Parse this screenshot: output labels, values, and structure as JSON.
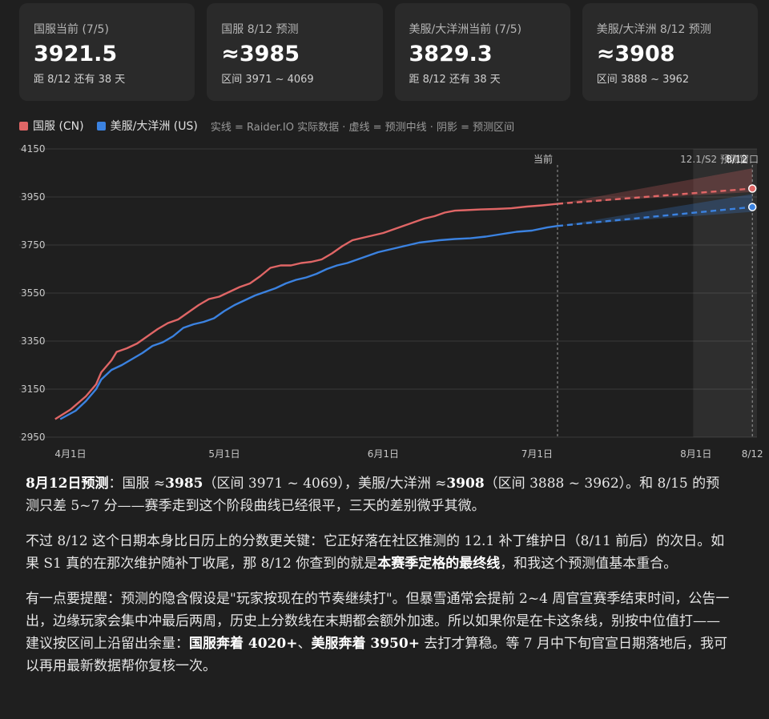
{
  "cards": [
    {
      "label": "国服当前 (7/5)",
      "value": "3921.5",
      "sub": "距 8/12 还有 38 天"
    },
    {
      "label": "国服 8/12 预测",
      "value": "≈3985",
      "sub": "区间 3971 ~ 4069"
    },
    {
      "label": "美服/大洋洲当前 (7/5)",
      "value": "3829.3",
      "sub": "距 8/12 还有 38 天"
    },
    {
      "label": "美服/大洋洲 8/12 预测",
      "value": "≈3908",
      "sub": "区间 3888 ~ 3962"
    }
  ],
  "legend": {
    "cn": "国服 (CN)",
    "us": "美服/大洋洲 (US)",
    "note": "实线 = Raider.IO 实际数据 · 虚线 = 预测中线 · 阴影 = 预测区间"
  },
  "colors": {
    "cn": "#e06666",
    "us": "#3b82e0",
    "background": "#1f1f1f"
  },
  "chart_data": {
    "type": "line",
    "x_unit": "days since 4/1",
    "xlim": [
      -10,
      140
    ],
    "ylim": [
      2950,
      4150
    ],
    "y_ticks": [
      2950,
      3150,
      3350,
      3550,
      3750,
      3950,
      4150
    ],
    "x_ticks": [
      {
        "x": 0,
        "label": "4月1日"
      },
      {
        "x": 30,
        "label": "5月1日"
      },
      {
        "x": 61,
        "label": "6月1日"
      },
      {
        "x": 91,
        "label": "7月1日"
      },
      {
        "x": 122,
        "label": "8月1日"
      },
      {
        "x": 133,
        "label": "8/12"
      }
    ],
    "markers": [
      {
        "x": 95,
        "label": "当前"
      },
      {
        "x": 133,
        "label": "8/12"
      }
    ],
    "window": {
      "x_start": 121,
      "x_end": 144,
      "label": "12.1/S2 预测窗口"
    },
    "series": [
      {
        "name": "国服 (CN)",
        "key": "cn",
        "actual": [
          [
            -3,
            3025
          ],
          [
            0,
            3065
          ],
          [
            3,
            3120
          ],
          [
            5,
            3170
          ],
          [
            6,
            3220
          ],
          [
            8,
            3270
          ],
          [
            9,
            3305
          ],
          [
            11,
            3320
          ],
          [
            13,
            3340
          ],
          [
            15,
            3370
          ],
          [
            17,
            3400
          ],
          [
            19,
            3425
          ],
          [
            21,
            3440
          ],
          [
            23,
            3470
          ],
          [
            25,
            3500
          ],
          [
            27,
            3525
          ],
          [
            29,
            3535
          ],
          [
            31,
            3555
          ],
          [
            33,
            3575
          ],
          [
            35,
            3590
          ],
          [
            37,
            3620
          ],
          [
            39,
            3655
          ],
          [
            41,
            3665
          ],
          [
            43,
            3665
          ],
          [
            45,
            3675
          ],
          [
            47,
            3680
          ],
          [
            49,
            3690
          ],
          [
            51,
            3715
          ],
          [
            53,
            3745
          ],
          [
            55,
            3770
          ],
          [
            57,
            3780
          ],
          [
            59,
            3790
          ],
          [
            61,
            3800
          ],
          [
            63,
            3815
          ],
          [
            65,
            3830
          ],
          [
            67,
            3845
          ],
          [
            69,
            3860
          ],
          [
            71,
            3870
          ],
          [
            73,
            3885
          ],
          [
            75,
            3893
          ],
          [
            77,
            3895
          ],
          [
            80,
            3898
          ],
          [
            83,
            3900
          ],
          [
            86,
            3903
          ],
          [
            89,
            3910
          ],
          [
            92,
            3915
          ],
          [
            95,
            3921.5
          ]
        ],
        "forecast": [
          [
            95,
            3921.5
          ],
          [
            133,
            3985
          ]
        ],
        "band_low": [
          [
            95,
            3921.5
          ],
          [
            133,
            3971
          ]
        ],
        "band_high": [
          [
            95,
            3921.5
          ],
          [
            133,
            4069
          ]
        ]
      },
      {
        "name": "美服/大洋洲 (US)",
        "key": "us",
        "actual": [
          [
            -2,
            3025
          ],
          [
            1,
            3060
          ],
          [
            3,
            3100
          ],
          [
            5,
            3150
          ],
          [
            6,
            3190
          ],
          [
            8,
            3230
          ],
          [
            10,
            3250
          ],
          [
            12,
            3275
          ],
          [
            14,
            3300
          ],
          [
            16,
            3330
          ],
          [
            18,
            3345
          ],
          [
            20,
            3370
          ],
          [
            22,
            3405
          ],
          [
            24,
            3420
          ],
          [
            26,
            3430
          ],
          [
            28,
            3445
          ],
          [
            30,
            3475
          ],
          [
            32,
            3500
          ],
          [
            34,
            3520
          ],
          [
            36,
            3540
          ],
          [
            38,
            3555
          ],
          [
            40,
            3570
          ],
          [
            42,
            3590
          ],
          [
            44,
            3605
          ],
          [
            46,
            3615
          ],
          [
            48,
            3630
          ],
          [
            50,
            3650
          ],
          [
            52,
            3665
          ],
          [
            54,
            3675
          ],
          [
            56,
            3690
          ],
          [
            58,
            3705
          ],
          [
            60,
            3720
          ],
          [
            62,
            3730
          ],
          [
            64,
            3740
          ],
          [
            66,
            3750
          ],
          [
            68,
            3760
          ],
          [
            70,
            3765
          ],
          [
            72,
            3770
          ],
          [
            75,
            3775
          ],
          [
            78,
            3778
          ],
          [
            81,
            3785
          ],
          [
            84,
            3795
          ],
          [
            87,
            3805
          ],
          [
            90,
            3810
          ],
          [
            93,
            3823
          ],
          [
            95,
            3829.3
          ]
        ],
        "forecast": [
          [
            95,
            3829.3
          ],
          [
            133,
            3908
          ]
        ],
        "band_low": [
          [
            95,
            3829.3
          ],
          [
            133,
            3888
          ]
        ],
        "band_high": [
          [
            95,
            3829.3
          ],
          [
            133,
            3962
          ]
        ]
      }
    ]
  },
  "paragraphs": [
    [
      {
        "b": true,
        "t": "8月12日预测"
      },
      {
        "t": "：国服 ≈"
      },
      {
        "b": true,
        "t": "3985"
      },
      {
        "t": "（区间 3971 ~ 4069），美服/大洋洲 ≈"
      },
      {
        "b": true,
        "t": "3908"
      },
      {
        "t": "（区间 3888 ~ 3962）。和 8/15 的预测只差 5~7 分——赛季走到这个阶段曲线已经很平，三天的差别微乎其微。"
      }
    ],
    [
      {
        "t": "不过 8/12 这个日期本身比日历上的分数更关键：它正好落在社区推测的 12.1 补丁维护日（8/11 前后）的次日。如果 S1 真的在那次维护随补丁收尾，那 8/12 你查到的就是"
      },
      {
        "b": true,
        "t": "本赛季定格的最终线"
      },
      {
        "t": "，和我这个预测值基本重合。"
      }
    ],
    [
      {
        "t": "有一点要提醒：预测的隐含假设是\"玩家按现在的节奏继续打\"。但暴雪通常会提前 2~4 周官宣赛季结束时间，公告一出，边缘玩家会集中冲最后两周，历史上分数线在末期都会额外加速。所以如果你是在卡这条线，别按中位值打——建议按区间上沿留出余量："
      },
      {
        "b": true,
        "t": "国服奔着 4020+"
      },
      {
        "t": "、"
      },
      {
        "b": true,
        "t": "美服奔着 3950+"
      },
      {
        "t": " 去打才算稳。等 7 月中下旬官宣日期落地后，我可以再用最新数据帮你复核一次。"
      }
    ]
  ]
}
